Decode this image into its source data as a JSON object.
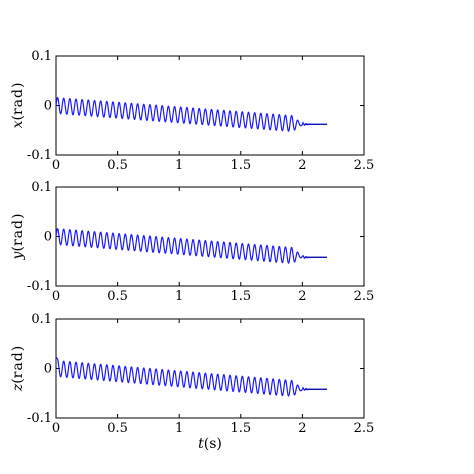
{
  "chart_data": [
    {
      "type": "line",
      "title": "",
      "xlabel": "",
      "ylabel_var": "x",
      "ylabel_unit": "rad",
      "xlim": [
        0,
        2.5
      ],
      "ylim": [
        -0.1,
        0.1
      ],
      "xticks": [
        "0",
        "0.5",
        "1",
        "1.5",
        "2",
        "2.5"
      ],
      "yticks": [
        "-0.1",
        "0",
        "0.1"
      ],
      "grid": false,
      "series": [
        {
          "color": "#1a1aff",
          "center_start": 0.0,
          "center_end": -0.038,
          "amplitude": 0.016,
          "oscillation_cycles": 40,
          "oscillation_end_t": 2.0,
          "settled_value": -0.038,
          "t_end": 2.2
        }
      ]
    },
    {
      "type": "line",
      "title": "",
      "xlabel": "",
      "ylabel_var": "y",
      "ylabel_unit": "rad",
      "xlim": [
        0,
        2.5
      ],
      "ylim": [
        -0.1,
        0.1
      ],
      "xticks": [
        "0",
        "0.5",
        "1",
        "1.5",
        "2",
        "2.5"
      ],
      "yticks": [
        "-0.1",
        "0",
        "0.1"
      ],
      "grid": false,
      "series": [
        {
          "color": "#1a1aff",
          "center_start": 0.0,
          "center_end": -0.04,
          "amplitude": 0.016,
          "oscillation_cycles": 40,
          "oscillation_end_t": 2.0,
          "settled_value": -0.042,
          "t_end": 2.2
        }
      ]
    },
    {
      "type": "line",
      "title": "",
      "xlabel_var": "t",
      "xlabel_unit": "s",
      "ylabel_var": "z",
      "ylabel_unit": "rad",
      "xlim": [
        0,
        2.5
      ],
      "ylim": [
        -0.1,
        0.1
      ],
      "xticks": [
        "0",
        "0.5",
        "1",
        "1.5",
        "2",
        "2.5"
      ],
      "yticks": [
        "-0.1",
        "0",
        "0.1"
      ],
      "grid": false,
      "series": [
        {
          "color": "#1a1aff",
          "center_start": 0.0,
          "center_end": -0.042,
          "amplitude": 0.016,
          "oscillation_cycles": 40,
          "oscillation_end_t": 2.0,
          "settled_value": -0.042,
          "t_end": 2.2,
          "initial_spike": 0.025
        }
      ]
    }
  ]
}
